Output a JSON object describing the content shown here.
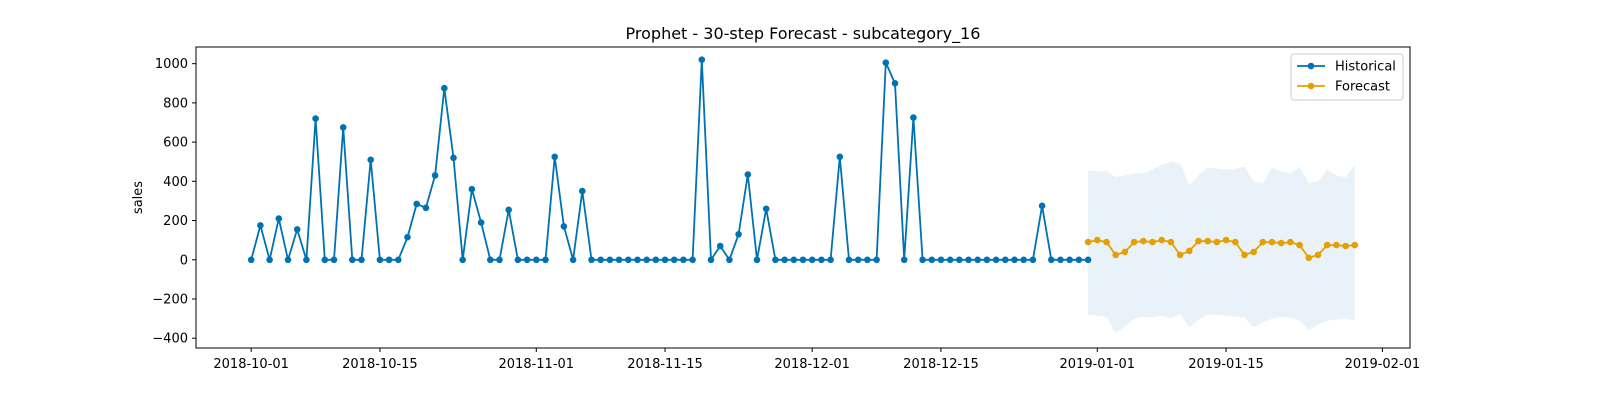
{
  "chart_data": {
    "type": "line",
    "title": "Prophet - 30-step Forecast - subcategory_16",
    "xlabel": "",
    "ylabel": "sales",
    "x_range": [
      "2018-09-25",
      "2019-02-04"
    ],
    "ylim": [
      -450,
      1085
    ],
    "grid": false,
    "legend_position": "top-right",
    "x_ticks": [
      "2018-10-01",
      "2018-10-15",
      "2018-11-01",
      "2018-11-15",
      "2018-12-01",
      "2018-12-15",
      "2019-01-01",
      "2019-01-15",
      "2019-02-01"
    ],
    "x_tick_labels": [
      "2018-10-01",
      "2018-10-15",
      "2018-11-01",
      "2018-11-15",
      "2018-12-01",
      "2018-12-15",
      "2019-01-01",
      "2019-01-15",
      "2019-02-01"
    ],
    "y_ticks": [
      -400,
      -200,
      0,
      200,
      400,
      600,
      800,
      1000
    ],
    "y_tick_labels": [
      "−400",
      "−200",
      "0",
      "200",
      "400",
      "600",
      "800",
      "1000"
    ],
    "colors": {
      "historical": "#0072B2",
      "forecast": "#E69F00",
      "interval": "#0072B2"
    },
    "series": [
      {
        "name": "Historical",
        "start_date": "2018-10-01",
        "values": [
          0,
          175,
          0,
          210,
          0,
          155,
          0,
          720,
          0,
          0,
          675,
          0,
          0,
          510,
          0,
          0,
          0,
          115,
          285,
          265,
          430,
          875,
          520,
          0,
          360,
          190,
          0,
          0,
          255,
          0,
          0,
          0,
          0,
          525,
          170,
          0,
          350,
          0,
          0,
          0,
          0,
          0,
          0,
          0,
          0,
          0,
          0,
          0,
          0,
          1020,
          0,
          70,
          0,
          130,
          435,
          0,
          260,
          0,
          0,
          0,
          0,
          0,
          0,
          0,
          525,
          0,
          0,
          0,
          0,
          1005,
          900,
          0,
          725,
          0,
          0,
          0,
          0,
          0,
          0,
          0,
          0,
          0,
          0,
          0,
          0,
          0,
          275,
          0,
          0,
          0,
          0,
          0
        ]
      },
      {
        "name": "Forecast",
        "start_date": "2018-12-31",
        "values": [
          90,
          100,
          90,
          25,
          40,
          90,
          95,
          90,
          100,
          90,
          25,
          45,
          95,
          95,
          90,
          100,
          90,
          25,
          40,
          90,
          90,
          85,
          90,
          75,
          10,
          25,
          75,
          75,
          70,
          75
        ]
      }
    ],
    "interval": {
      "start_date": "2018-12-31",
      "upper": [
        455,
        450,
        455,
        420,
        430,
        440,
        440,
        460,
        485,
        500,
        490,
        380,
        430,
        470,
        465,
        460,
        465,
        475,
        400,
        390,
        470,
        450,
        440,
        470,
        390,
        400,
        460,
        430,
        420,
        485
      ],
      "lower": [
        -280,
        -285,
        -290,
        -375,
        -340,
        -300,
        -290,
        -295,
        -285,
        -300,
        -275,
        -345,
        -305,
        -280,
        -280,
        -285,
        -290,
        -295,
        -345,
        -320,
        -300,
        -290,
        -295,
        -310,
        -360,
        -330,
        -310,
        -305,
        -300,
        -310
      ]
    }
  }
}
